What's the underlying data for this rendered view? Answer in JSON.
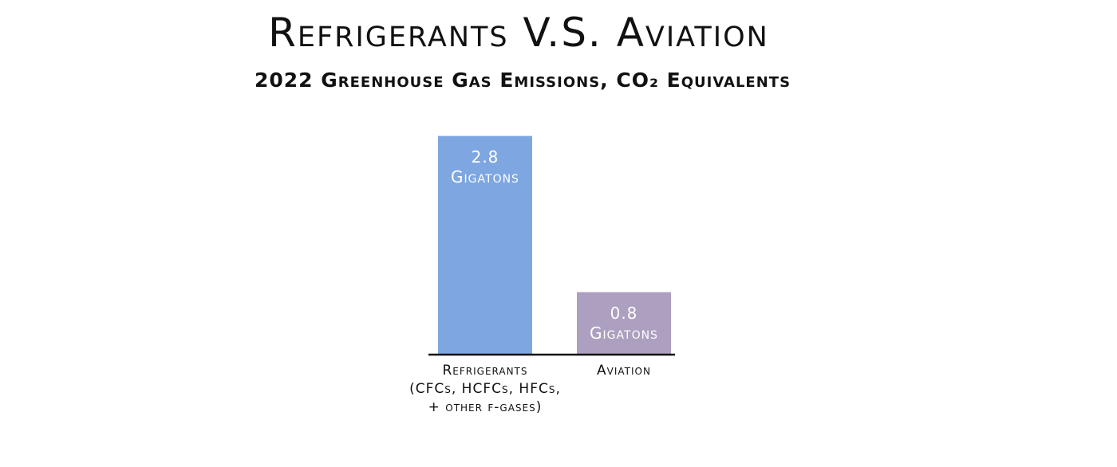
{
  "chart_data": {
    "type": "bar",
    "title": "Refrigerants V.S. Aviation",
    "subtitle": "2022 Greenhouse Gas Emissions, CO₂ Equivalents",
    "categories": [
      "Refrigerants\n(CFCs, HCFCs, HFCs,\n+ other f-gases)",
      "Aviation"
    ],
    "values": [
      2.8,
      0.8
    ],
    "value_labels": [
      "2.8\nGigatons",
      "0.8\nGigatons"
    ],
    "colors": [
      "#7ea6e0",
      "#ad9fbf"
    ]
  }
}
